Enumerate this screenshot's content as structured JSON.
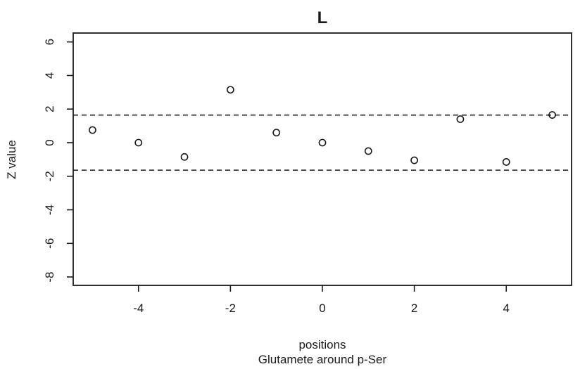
{
  "chart_data": {
    "type": "scatter",
    "title": "L",
    "xlabel": "positions",
    "xlabel_line2": "Glutamete around p-Ser",
    "ylabel": "Z value",
    "x": [
      -5,
      -4,
      -3,
      -2,
      -1,
      0,
      1,
      2,
      3,
      4,
      5
    ],
    "y": [
      0.75,
      0.0,
      -0.85,
      3.15,
      0.6,
      0.0,
      -0.5,
      -1.05,
      1.4,
      -1.15,
      1.65
    ],
    "x_ticks": [
      -4,
      -2,
      0,
      2,
      4
    ],
    "y_ticks": [
      -8,
      -6,
      -4,
      -2,
      0,
      2,
      4,
      6
    ],
    "xlim": [
      -5.42,
      5.42
    ],
    "ylim": [
      -8.5,
      6.53
    ],
    "threshold_lines": [
      1.64,
      -1.64
    ],
    "grid": false,
    "marker": "open-circle",
    "legend": "none",
    "colors": {
      "foreground": "#1a1a1a",
      "background": "#ffffff"
    }
  }
}
